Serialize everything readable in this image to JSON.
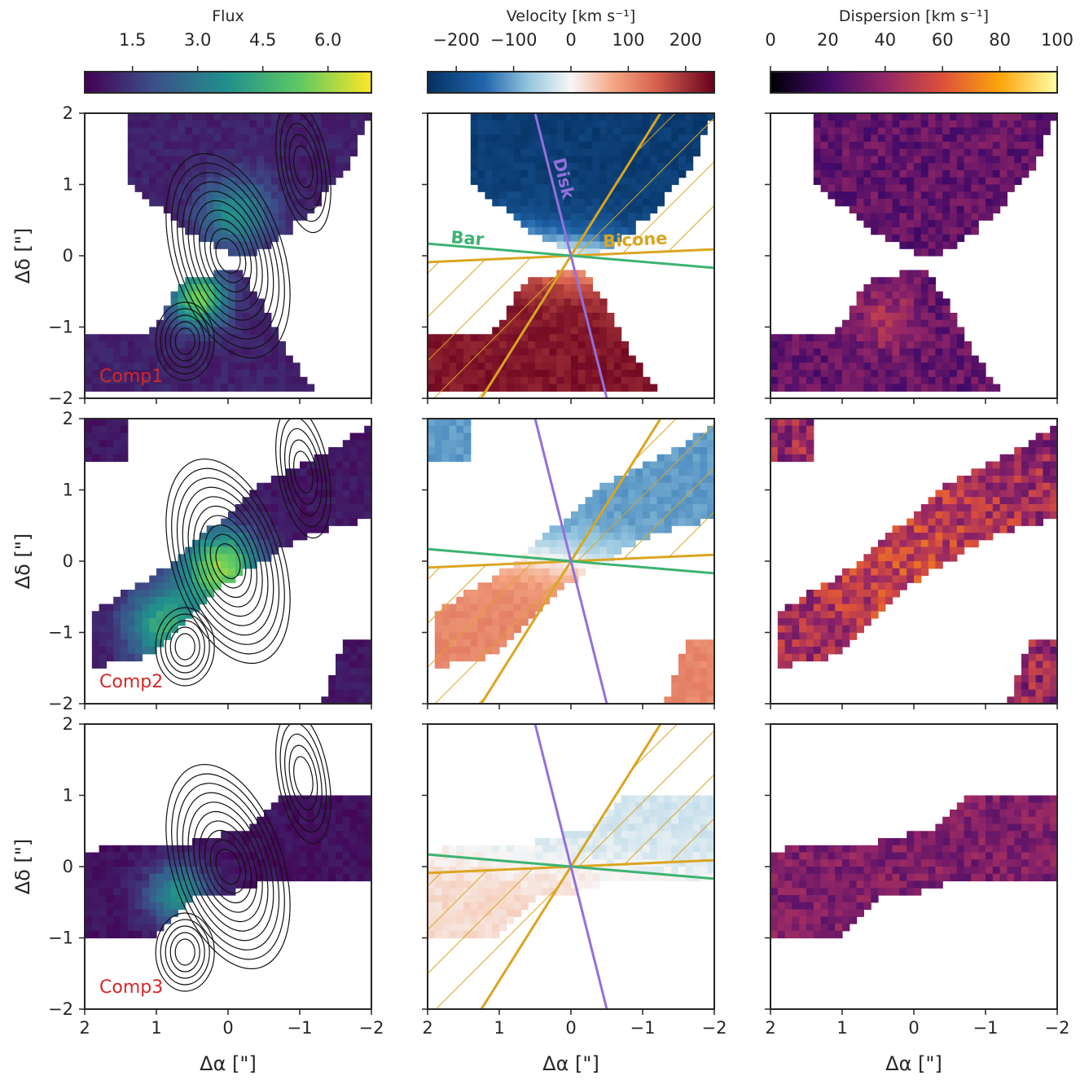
{
  "chart_data": {
    "type": "heatmap",
    "colorbars": [
      {
        "id": "flux",
        "label": "Flux",
        "cmap": "viridis",
        "range": [
          0.4,
          7.0
        ],
        "ticks": [
          "1.5",
          "3.0",
          "4.5",
          "6.0"
        ],
        "tick_values": [
          1.5,
          3.0,
          4.5,
          6.0
        ]
      },
      {
        "id": "velocity",
        "label": "Velocity [km s⁻¹]",
        "cmap": "RdBu_r",
        "range": [
          -250,
          250
        ],
        "ticks": [
          "−200",
          "−100",
          "0",
          "100",
          "200"
        ],
        "tick_values": [
          -200,
          -100,
          0,
          100,
          200
        ]
      },
      {
        "id": "dispersion",
        "label": "Dispersion [km s⁻¹]",
        "cmap": "inferno",
        "range": [
          0,
          100
        ],
        "ticks": [
          "0",
          "20",
          "40",
          "60",
          "80",
          "100"
        ],
        "tick_values": [
          0,
          20,
          40,
          60,
          80,
          100
        ]
      }
    ],
    "rows": [
      "Comp1",
      "Comp2",
      "Comp3"
    ],
    "xlabel": "Δα [\"]",
    "ylabel": "Δδ [\"]",
    "xlim": [
      2,
      -2
    ],
    "ylim": [
      -2,
      2
    ],
    "xticks": [
      "2",
      "1",
      "0",
      "−1",
      "−2"
    ],
    "xtick_values": [
      2,
      1,
      0,
      -1,
      -2
    ],
    "yticks": [
      "−2",
      "−1",
      "0",
      "1",
      "2"
    ],
    "ytick_values": [
      -2,
      -1,
      0,
      1,
      2
    ],
    "annotations": {
      "disk": {
        "label": "Disk",
        "color": "#9370DB",
        "from": [
          0.5,
          2.0
        ],
        "to": [
          -0.5,
          -2.0
        ]
      },
      "bar": {
        "label": "Bar",
        "color": "#3CB371",
        "from": [
          2.0,
          0.17
        ],
        "to": [
          -2.0,
          -0.17
        ]
      },
      "bicone": {
        "label": "Bicone",
        "color": "#DAA520",
        "edges": [
          [
            [
              2.0,
              -0.09
            ],
            [
              -2.0,
              0.09
            ]
          ],
          [
            [
              1.25,
              -2.0
            ],
            [
              -1.25,
              2.0
            ]
          ]
        ]
      }
    },
    "grid": false
  }
}
